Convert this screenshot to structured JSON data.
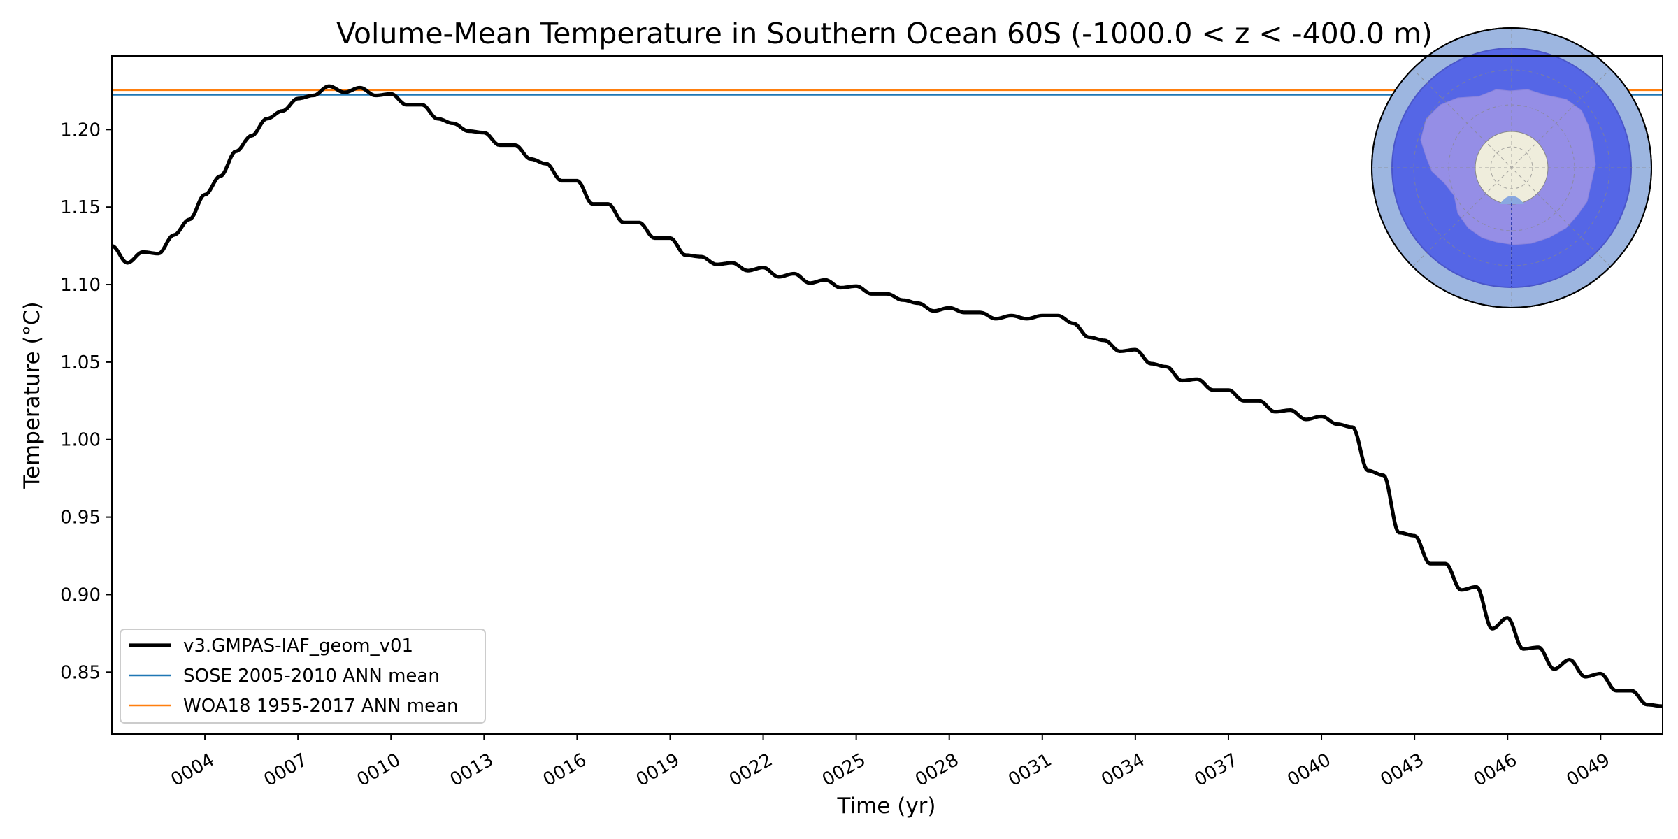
{
  "chart_data": {
    "type": "line",
    "title": "Volume-Mean Temperature in Southern Ocean 60S (-1000.0 < z < -400.0 m)",
    "xlabel": "Time (yr)",
    "ylabel": "Temperature (°C)",
    "xlim": [
      1,
      51.0
    ],
    "ylim": [
      0.81,
      1.2475
    ],
    "xticks": [
      4,
      7,
      10,
      13,
      16,
      19,
      22,
      25,
      28,
      31,
      34,
      37,
      40,
      43,
      46,
      49
    ],
    "xtick_labels": [
      "0004",
      "0007",
      "0010",
      "0013",
      "0016",
      "0019",
      "0022",
      "0025",
      "0028",
      "0031",
      "0034",
      "0037",
      "0040",
      "0043",
      "0046",
      "0049"
    ],
    "yticks": [
      0.85,
      0.9,
      0.95,
      1.0,
      1.05,
      1.1,
      1.15,
      1.2
    ],
    "ytick_labels": [
      "0.85",
      "0.90",
      "0.95",
      "1.00",
      "1.05",
      "1.10",
      "1.15",
      "1.20"
    ],
    "series": [
      {
        "name": "v3.GMPAS-IAF_geom_v01",
        "color": "#000000",
        "x": [
          1.0,
          1.5,
          2.0,
          2.5,
          3.0,
          3.5,
          4.0,
          4.5,
          5.0,
          5.5,
          6.0,
          6.5,
          7.0,
          7.5,
          8.0,
          8.5,
          9.0,
          9.5,
          10.0,
          10.5,
          11.0,
          11.5,
          12.0,
          12.5,
          13.0,
          13.5,
          14.0,
          14.5,
          15.0,
          15.5,
          16.0,
          16.5,
          17.0,
          17.5,
          18.0,
          18.5,
          19.0,
          19.5,
          20.0,
          20.5,
          21.0,
          21.5,
          22.0,
          22.5,
          23.0,
          23.5,
          24.0,
          24.5,
          25.0,
          25.5,
          26.0,
          26.5,
          27.0,
          27.5,
          28.0,
          28.5,
          29.0,
          29.5,
          30.0,
          30.5,
          31.0,
          31.5,
          32.0,
          32.5,
          33.0,
          33.5,
          34.0,
          34.5,
          35.0,
          35.5,
          36.0,
          36.5,
          37.0,
          37.5,
          38.0,
          38.5,
          39.0,
          39.5,
          40.0,
          40.5,
          41.0,
          41.5,
          42.0,
          42.5,
          43.0,
          43.5,
          44.0,
          44.5,
          45.0,
          45.5,
          46.0,
          46.5,
          47.0,
          47.5,
          48.0,
          48.5,
          49.0,
          49.5,
          50.0,
          50.5,
          51.0
        ],
        "values": [
          1.125,
          1.114,
          1.121,
          1.12,
          1.132,
          1.142,
          1.158,
          1.17,
          1.186,
          1.196,
          1.207,
          1.212,
          1.22,
          1.222,
          1.228,
          1.224,
          1.227,
          1.222,
          1.223,
          1.216,
          1.216,
          1.207,
          1.204,
          1.199,
          1.198,
          1.19,
          1.19,
          1.181,
          1.178,
          1.167,
          1.167,
          1.152,
          1.152,
          1.14,
          1.14,
          1.13,
          1.13,
          1.119,
          1.118,
          1.113,
          1.114,
          1.109,
          1.111,
          1.105,
          1.107,
          1.101,
          1.103,
          1.098,
          1.099,
          1.094,
          1.094,
          1.09,
          1.088,
          1.083,
          1.085,
          1.082,
          1.082,
          1.078,
          1.08,
          1.078,
          1.08,
          1.08,
          1.075,
          1.066,
          1.064,
          1.057,
          1.058,
          1.049,
          1.047,
          1.038,
          1.039,
          1.032,
          1.032,
          1.025,
          1.025,
          1.018,
          1.019,
          1.013,
          1.015,
          1.01,
          1.008,
          0.98,
          0.977,
          0.94,
          0.938,
          0.92,
          0.92,
          0.903,
          0.905,
          0.878,
          0.885,
          0.865,
          0.866,
          0.852,
          0.858,
          0.847,
          0.849,
          0.838,
          0.838,
          0.829,
          0.828
        ]
      },
      {
        "name": "SOSE 2005-2010 ANN mean",
        "color": "#1f77b4",
        "constant": 1.2225
      },
      {
        "name": "WOA18 1955-2017 ANN mean",
        "color": "#ff7f0e",
        "constant": 1.2255
      }
    ],
    "legend": "lower-left",
    "inset": "south-polar-map"
  }
}
